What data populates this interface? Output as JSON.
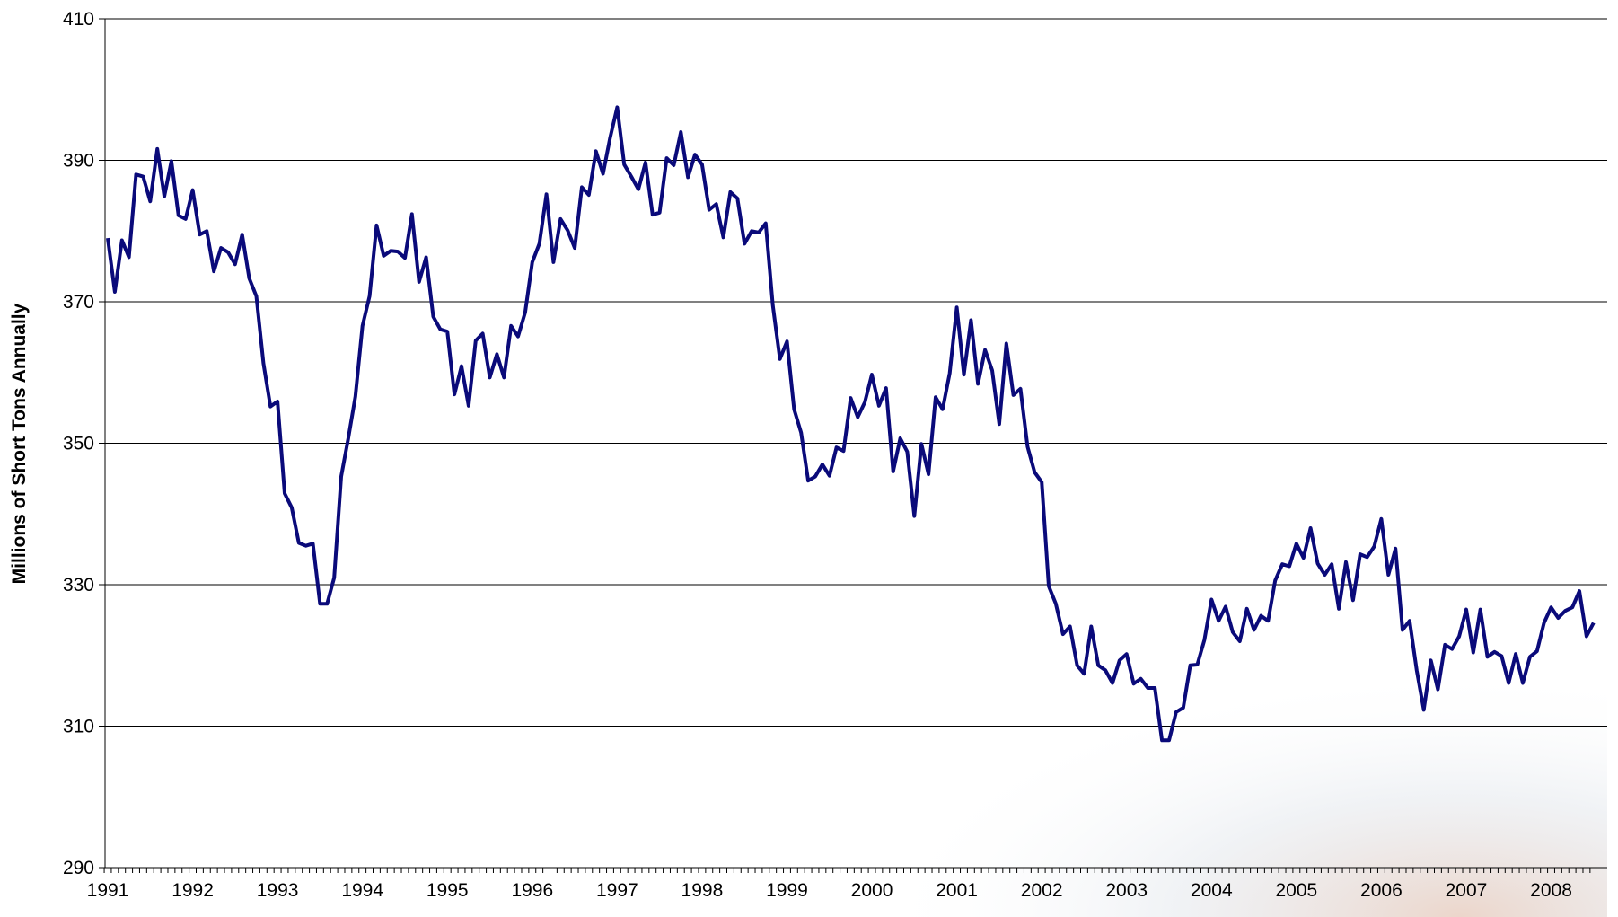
{
  "chart_data": {
    "type": "line",
    "y_label": "Millions of Short Tons Annually",
    "color": "#0a0a7a",
    "grid": true,
    "ylim": [
      290,
      410
    ],
    "yticks": [
      290,
      310,
      330,
      350,
      370,
      390,
      410
    ],
    "categories": [
      "1991",
      null,
      null,
      null,
      null,
      null,
      null,
      null,
      null,
      null,
      null,
      null,
      "1992",
      null,
      null,
      null,
      null,
      null,
      null,
      null,
      null,
      null,
      null,
      null,
      "1993",
      null,
      null,
      null,
      null,
      null,
      null,
      null,
      null,
      null,
      null,
      null,
      "1994",
      null,
      null,
      null,
      null,
      null,
      null,
      null,
      null,
      null,
      null,
      null,
      "1995",
      null,
      null,
      null,
      null,
      null,
      null,
      null,
      null,
      null,
      null,
      null,
      "1996",
      null,
      null,
      null,
      null,
      null,
      null,
      null,
      null,
      null,
      null,
      null,
      "1997",
      null,
      null,
      null,
      null,
      null,
      null,
      null,
      null,
      null,
      null,
      null,
      "1998",
      null,
      null,
      null,
      null,
      null,
      null,
      null,
      null,
      null,
      null,
      null,
      "1999",
      null,
      null,
      null,
      null,
      null,
      null,
      null,
      null,
      null,
      null,
      null,
      "2000",
      null,
      null,
      null,
      null,
      null,
      null,
      null,
      null,
      null,
      null,
      null,
      "2001",
      null,
      null,
      null,
      null,
      null,
      null,
      null,
      null,
      null,
      null,
      null,
      "2002",
      null,
      null,
      null,
      null,
      null,
      null,
      null,
      null,
      null,
      null,
      null,
      "2003",
      null,
      null,
      null,
      null,
      null,
      null,
      null,
      null,
      null,
      null,
      null,
      "2004",
      null,
      null,
      null,
      null,
      null,
      null,
      null,
      null,
      null,
      null,
      null,
      "2005",
      null,
      null,
      null,
      null,
      null,
      null,
      null,
      null,
      null,
      null,
      null,
      "2006",
      null,
      null,
      null,
      null,
      null,
      null,
      null,
      null,
      null,
      null,
      null,
      "2007",
      null,
      null,
      null,
      null,
      null,
      null,
      null,
      null,
      null,
      null,
      null,
      "2008",
      null,
      null,
      null,
      null,
      null,
      null
    ],
    "values": [
      379,
      371.4,
      378.7,
      376.3,
      388,
      387.7,
      384.2,
      391.6,
      384.9,
      389.9,
      382.2,
      381.7,
      385.8,
      379.5,
      380,
      374.3,
      377.6,
      377,
      375.3,
      379.5,
      373.3,
      370.8,
      361.3,
      355.2,
      355.9,
      342.9,
      340.9,
      335.9,
      335.5,
      335.8,
      327.3,
      327.3,
      331,
      345.3,
      350.7,
      356.6,
      366.6,
      370.8,
      380.8,
      376.5,
      377.2,
      377.1,
      376.2,
      382.4,
      372.8,
      376.3,
      367.9,
      366.1,
      365.8,
      356.9,
      360.9,
      355.3,
      364.5,
      365.5,
      359.3,
      362.6,
      359.3,
      366.6,
      365.1,
      368.5,
      375.6,
      378.2,
      385.2,
      375.6,
      381.7,
      380.1,
      377.6,
      386.2,
      385.1,
      391.3,
      388.1,
      393.2,
      397.5,
      389.4,
      387.7,
      385.9,
      389.7,
      382.3,
      382.6,
      390.3,
      389.3,
      394,
      387.6,
      390.8,
      389.4,
      383,
      383.8,
      379.1,
      385.5,
      384.6,
      378.2,
      380,
      379.8,
      381.1,
      369.5,
      361.9,
      364.4,
      354.8,
      351.5,
      344.7,
      345.3,
      347,
      345.4,
      349.4,
      348.9,
      356.4,
      353.7,
      355.8,
      359.7,
      355.3,
      357.8,
      346,
      350.7,
      348.8,
      339.7,
      349.9,
      345.6,
      356.5,
      354.8,
      359.9,
      369.2,
      359.7,
      367.4,
      358.4,
      363.2,
      360.3,
      352.7,
      364.1,
      356.8,
      357.7,
      349.5,
      345.9,
      344.5,
      329.8,
      327.3,
      323,
      324.1,
      318.6,
      317.4,
      324.1,
      318.6,
      317.9,
      316.1,
      319.3,
      320.2,
      316,
      316.7,
      315.4,
      315.4,
      308,
      308,
      312,
      312.6,
      318.6,
      318.7,
      322.2,
      327.9,
      324.9,
      326.9,
      323.3,
      322,
      326.6,
      323.6,
      325.6,
      324.9,
      330.6,
      332.9,
      332.6,
      335.8,
      333.8,
      338,
      333,
      331.4,
      332.9,
      326.6,
      333.2,
      327.8,
      334.3,
      333.9,
      335.4,
      339.3,
      331.4,
      335.1,
      323.6,
      324.9,
      317.9,
      312.3,
      319.3,
      315.2,
      321.5,
      320.9,
      322.7,
      326.5,
      320.4,
      326.5,
      319.8,
      320.5,
      319.9,
      316.1,
      320.2,
      316.1,
      319.8,
      320.6,
      324.6,
      326.8,
      325.3,
      326.3,
      326.8,
      329.1,
      322.7,
      324.6
    ]
  }
}
